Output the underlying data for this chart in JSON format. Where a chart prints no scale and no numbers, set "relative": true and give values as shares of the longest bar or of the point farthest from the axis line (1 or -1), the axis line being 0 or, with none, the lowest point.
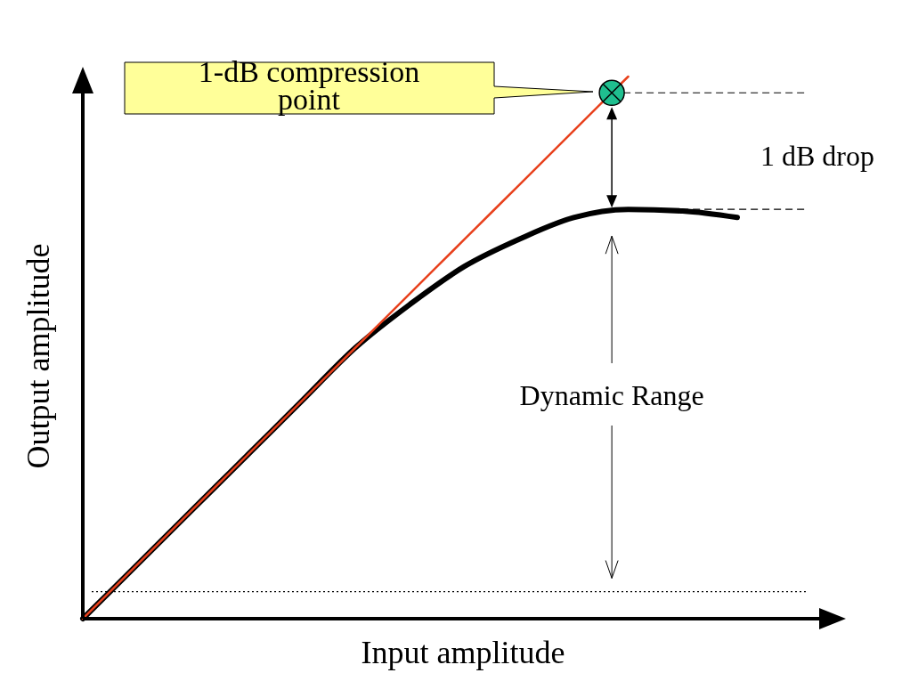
{
  "chart_data": {
    "type": "line",
    "relative": true,
    "xlabel": "Input amplitude",
    "ylabel": "Output amplitude",
    "categories": [
      null,
      null,
      null,
      null,
      null,
      null,
      null,
      null,
      null,
      null,
      null,
      null,
      null
    ],
    "series": [
      {
        "color": "#e8401c",
        "values": [
          0,
          0.1,
          0.2,
          0.3,
          0.4,
          0.5,
          0.6,
          0.7,
          0.8,
          0.9,
          1.0,
          null,
          null
        ]
      },
      {
        "color": "#000000",
        "values": [
          0,
          0.1,
          0.2,
          0.3,
          0.4,
          0.5,
          0.58,
          0.65,
          0.7,
          0.74,
          0.755,
          0.752,
          0.74
        ]
      }
    ],
    "ref_lines": [
      {
        "axis": "y",
        "value": 0.97,
        "line_style": "dashed",
        "color": "#000000"
      },
      {
        "axis": "y",
        "value": 0.755,
        "line_style": "dashed",
        "color": "#000000"
      },
      {
        "axis": "y",
        "value": 0.05,
        "line_style": "dotted",
        "color": "#000000"
      }
    ],
    "annotations": [
      "1-dB compression point",
      "1 dB drop",
      "Dynamic Range"
    ],
    "grid": false,
    "legend": false,
    "marker": "none",
    "line_style": "solid"
  }
}
